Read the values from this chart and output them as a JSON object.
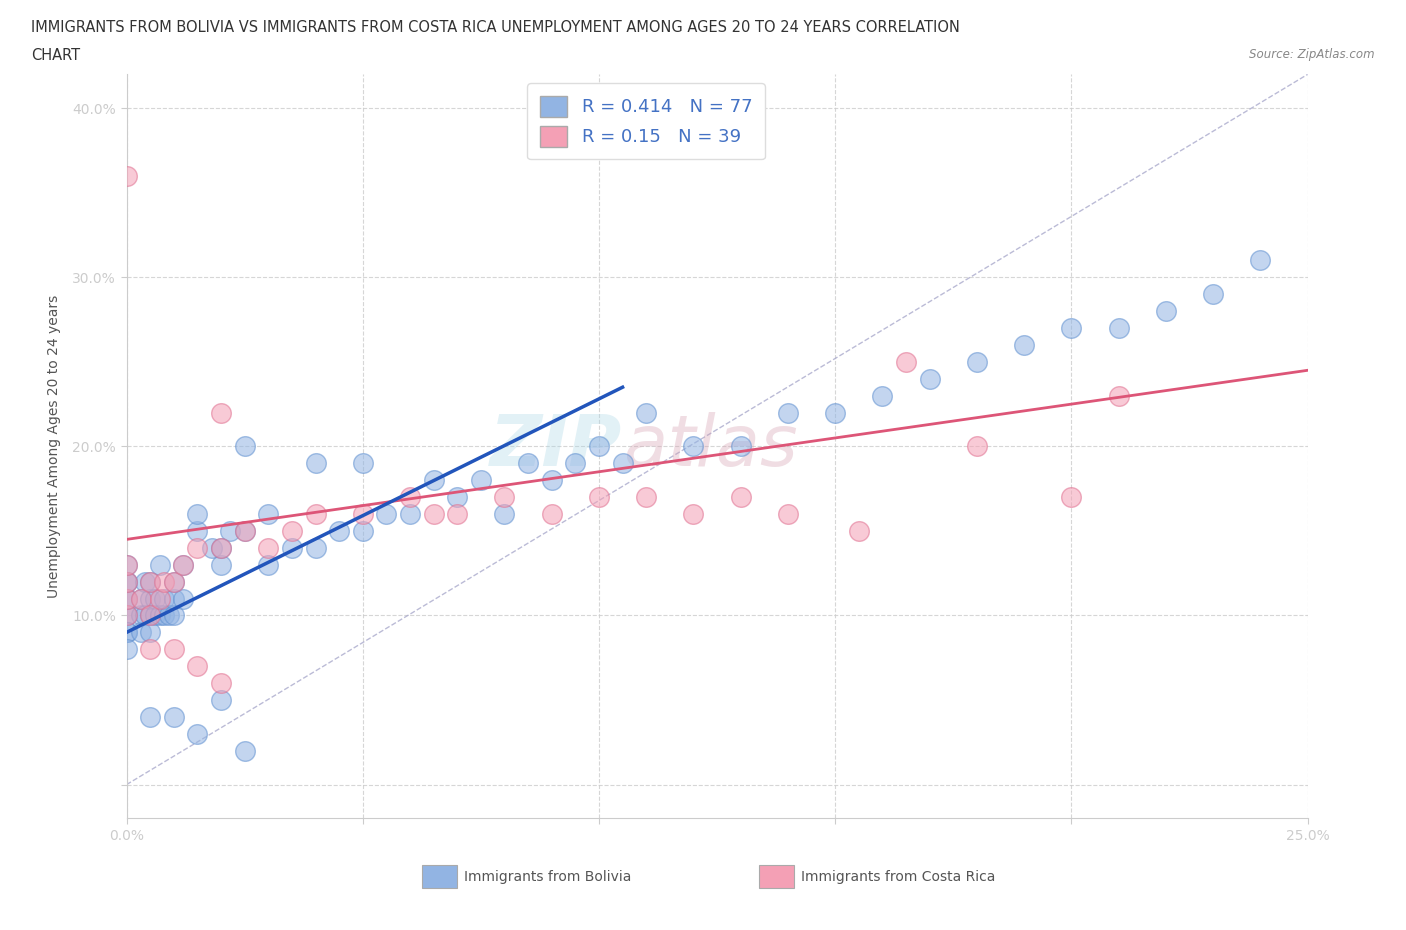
{
  "title_line1": "IMMIGRANTS FROM BOLIVIA VS IMMIGRANTS FROM COSTA RICA UNEMPLOYMENT AMONG AGES 20 TO 24 YEARS CORRELATION",
  "title_line2": "CHART",
  "source": "Source: ZipAtlas.com",
  "ylabel": "Unemployment Among Ages 20 to 24 years",
  "xlim": [
    0.0,
    0.25
  ],
  "ylim": [
    -0.02,
    0.42
  ],
  "xticks": [
    0.0,
    0.05,
    0.1,
    0.15,
    0.2,
    0.25
  ],
  "yticks": [
    0.0,
    0.1,
    0.2,
    0.3,
    0.4
  ],
  "xtick_labels": [
    "0.0%",
    "",
    "",
    "",
    "",
    "25.0%"
  ],
  "ytick_labels": [
    "",
    "10.0%",
    "20.0%",
    "30.0%",
    "40.0%"
  ],
  "bolivia_color": "#92b4e3",
  "bolivia_edge_color": "#6090d0",
  "costa_rica_color": "#f4a0b5",
  "costa_rica_edge_color": "#e07090",
  "bolivia_line_color": "#2255bb",
  "costa_rica_line_color": "#dd5577",
  "bolivia_R": 0.414,
  "bolivia_N": 77,
  "costa_rica_R": 0.15,
  "costa_rica_N": 39,
  "watermark_zip": "ZIP",
  "watermark_atlas": "atlas",
  "legend_label_bolivia": "Immigrants from Bolivia",
  "legend_label_costa_rica": "Immigrants from Costa Rica",
  "diag_color": "#aaaacc",
  "grid_color": "#cccccc",
  "background_color": "#ffffff",
  "bolivia_scatter_x": [
    0.0,
    0.0,
    0.0,
    0.0,
    0.0,
    0.0,
    0.0,
    0.0,
    0.0,
    0.0,
    0.003,
    0.003,
    0.003,
    0.004,
    0.004,
    0.005,
    0.005,
    0.005,
    0.005,
    0.006,
    0.006,
    0.007,
    0.007,
    0.008,
    0.008,
    0.009,
    0.01,
    0.01,
    0.01,
    0.012,
    0.012,
    0.015,
    0.015,
    0.018,
    0.02,
    0.02,
    0.022,
    0.025,
    0.025,
    0.03,
    0.03,
    0.035,
    0.04,
    0.04,
    0.045,
    0.05,
    0.05,
    0.055,
    0.06,
    0.065,
    0.07,
    0.075,
    0.08,
    0.085,
    0.09,
    0.095,
    0.1,
    0.105,
    0.11,
    0.12,
    0.13,
    0.14,
    0.15,
    0.16,
    0.17,
    0.18,
    0.19,
    0.2,
    0.21,
    0.22,
    0.23,
    0.24,
    0.005,
    0.01,
    0.015,
    0.02,
    0.025
  ],
  "bolivia_scatter_y": [
    0.1,
    0.1,
    0.11,
    0.11,
    0.12,
    0.12,
    0.13,
    0.09,
    0.09,
    0.08,
    0.1,
    0.11,
    0.09,
    0.1,
    0.12,
    0.1,
    0.09,
    0.11,
    0.12,
    0.1,
    0.11,
    0.1,
    0.13,
    0.1,
    0.11,
    0.1,
    0.1,
    0.11,
    0.12,
    0.11,
    0.13,
    0.15,
    0.16,
    0.14,
    0.13,
    0.14,
    0.15,
    0.15,
    0.2,
    0.13,
    0.16,
    0.14,
    0.14,
    0.19,
    0.15,
    0.15,
    0.19,
    0.16,
    0.16,
    0.18,
    0.17,
    0.18,
    0.16,
    0.19,
    0.18,
    0.19,
    0.2,
    0.19,
    0.22,
    0.2,
    0.2,
    0.22,
    0.22,
    0.23,
    0.24,
    0.25,
    0.26,
    0.27,
    0.27,
    0.28,
    0.29,
    0.31,
    0.04,
    0.04,
    0.03,
    0.05,
    0.02
  ],
  "costa_rica_scatter_x": [
    0.0,
    0.0,
    0.0,
    0.0,
    0.0,
    0.003,
    0.005,
    0.005,
    0.007,
    0.008,
    0.01,
    0.012,
    0.015,
    0.02,
    0.02,
    0.025,
    0.03,
    0.035,
    0.04,
    0.05,
    0.06,
    0.065,
    0.07,
    0.08,
    0.09,
    0.1,
    0.11,
    0.12,
    0.13,
    0.14,
    0.155,
    0.165,
    0.18,
    0.2,
    0.21,
    0.005,
    0.01,
    0.015,
    0.02
  ],
  "costa_rica_scatter_y": [
    0.1,
    0.11,
    0.12,
    0.13,
    0.36,
    0.11,
    0.12,
    0.1,
    0.11,
    0.12,
    0.12,
    0.13,
    0.14,
    0.14,
    0.22,
    0.15,
    0.14,
    0.15,
    0.16,
    0.16,
    0.17,
    0.16,
    0.16,
    0.17,
    0.16,
    0.17,
    0.17,
    0.16,
    0.17,
    0.16,
    0.15,
    0.25,
    0.2,
    0.17,
    0.23,
    0.08,
    0.08,
    0.07,
    0.06
  ],
  "bolivia_line_x": [
    0.0,
    0.105
  ],
  "bolivia_line_y_start": 0.09,
  "bolivia_line_y_end": 0.235,
  "costa_rica_line_x": [
    0.0,
    0.25
  ],
  "costa_rica_line_y_start": 0.145,
  "costa_rica_line_y_end": 0.245
}
